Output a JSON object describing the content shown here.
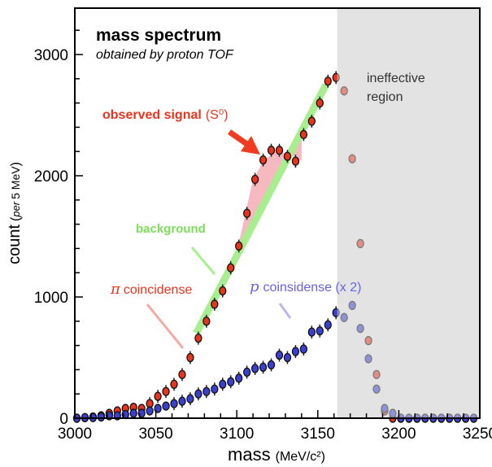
{
  "chart_data": {
    "type": "scatter",
    "title": "mass spectrum",
    "subtitle": "obtained by proton TOF",
    "xlabel": "mass",
    "xlabel_unit": "(MeV/c²)",
    "ylabel": "count",
    "ylabel_unit_prefix": "per",
    "ylabel_unit": "5 MeV",
    "xlim": [
      3000,
      3250
    ],
    "ylim": [
      0,
      3350
    ],
    "x_ticks": [
      "3000",
      "3050",
      "3100",
      "3150",
      "3200",
      "3250"
    ],
    "y_ticks": [
      "0",
      "1000",
      "2000",
      "3000"
    ],
    "grid": false,
    "annotations": {
      "ineffective": [
        "ineffective",
        "region"
      ],
      "observed": "observed signal",
      "observed_sym": "(S⁰)",
      "background": "background",
      "pi_sym": "π",
      "pi_text": "coincidense",
      "p_sym": "p",
      "p_text": "coinsidense (x 2)"
    },
    "colors": {
      "pi": "#e8341c",
      "p": "#3a3fd0",
      "background": "#a8ee90",
      "signal_fill": "#f7b9c0",
      "arrow": "#f03c1e",
      "shade": "#e3e3e3"
    },
    "ineffective_from": 3162,
    "series": [
      {
        "name": "π coincidense",
        "x": [
          3000,
          3005,
          3010,
          3015,
          3020,
          3025,
          3030,
          3035,
          3040,
          3045,
          3050,
          3055,
          3060,
          3065,
          3070,
          3075,
          3080,
          3085,
          3090,
          3095,
          3100,
          3105,
          3110,
          3115,
          3120,
          3125,
          3130,
          3135,
          3140,
          3145,
          3150,
          3155,
          3160,
          3165,
          3170,
          3175,
          3180,
          3185,
          3190,
          3195,
          3200,
          3205,
          3210,
          3215,
          3220,
          3225,
          3230,
          3235,
          3240,
          3245
        ],
        "values": [
          0,
          5,
          10,
          20,
          40,
          60,
          80,
          90,
          80,
          120,
          180,
          220,
          280,
          360,
          500,
          660,
          800,
          940,
          1050,
          1240,
          1420,
          1690,
          1970,
          2130,
          2210,
          2210,
          2160,
          2120,
          2340,
          2450,
          2600,
          2780,
          2810,
          2700,
          2140,
          1440,
          640,
          360,
          60,
          0,
          0,
          0,
          0,
          0,
          0,
          0,
          0,
          0,
          0,
          0
        ]
      },
      {
        "name": "p coinsidense (x 2)",
        "x": [
          3000,
          3005,
          3010,
          3015,
          3020,
          3025,
          3030,
          3035,
          3040,
          3045,
          3050,
          3055,
          3060,
          3065,
          3070,
          3075,
          3080,
          3085,
          3090,
          3095,
          3100,
          3105,
          3110,
          3115,
          3120,
          3125,
          3130,
          3135,
          3140,
          3145,
          3150,
          3155,
          3160,
          3165,
          3170,
          3175,
          3180,
          3185,
          3190,
          3195,
          3200,
          3205,
          3210,
          3215,
          3220,
          3225,
          3230,
          3235,
          3240,
          3245
        ],
        "values": [
          0,
          5,
          5,
          10,
          20,
          20,
          30,
          40,
          40,
          60,
          80,
          100,
          120,
          140,
          160,
          200,
          220,
          240,
          280,
          300,
          330,
          380,
          410,
          420,
          440,
          520,
          500,
          550,
          570,
          710,
          720,
          770,
          870,
          830,
          930,
          740,
          490,
          240,
          80,
          40,
          0,
          0,
          0,
          0,
          0,
          0,
          0,
          0,
          0,
          0
        ]
      }
    ],
    "background_line": {
      "x": [
        3075,
        3155
      ],
      "values": [
        700,
        2750
      ]
    },
    "signal_region": {
      "x": [
        3099,
        3110,
        3117,
        3125,
        3135,
        3140
      ],
      "values": [
        1310,
        1970,
        2130,
        2210,
        2160,
        2120
      ]
    }
  }
}
